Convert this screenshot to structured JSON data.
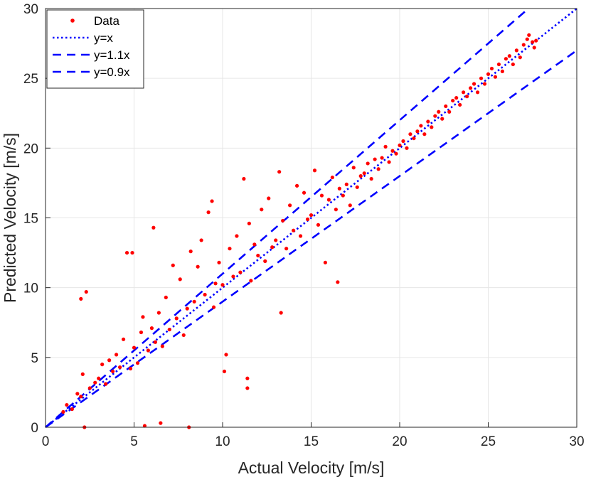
{
  "chart_data": {
    "type": "scatter",
    "title": "",
    "xlabel": "Actual Velocity [m/s]",
    "ylabel": "Predicted Velocity [m/s]",
    "xlim": [
      0,
      30
    ],
    "ylim": [
      0,
      30
    ],
    "xticks": [
      0,
      5,
      10,
      15,
      20,
      25,
      30
    ],
    "yticks": [
      0,
      5,
      10,
      15,
      20,
      25,
      30
    ],
    "xtick_labels": [
      "0",
      "5",
      "10",
      "15",
      "20",
      "25",
      "30"
    ],
    "ytick_labels": [
      "0",
      "5",
      "10",
      "15",
      "20",
      "25",
      "30"
    ],
    "grid": true,
    "legend_position": "top-left",
    "colors": {
      "data": "#ff0000",
      "lines": "#0000ff"
    },
    "legend": [
      {
        "label": "Data",
        "style": "marker"
      },
      {
        "label": "y=x",
        "style": "dotted"
      },
      {
        "label": "y=1.1x",
        "style": "dashed"
      },
      {
        "label": "y=0.9x",
        "style": "dashed"
      }
    ],
    "reference_lines": [
      {
        "name": "y=x",
        "slope": 1.0,
        "style": "dotted"
      },
      {
        "name": "y=1.1x",
        "slope": 1.1,
        "style": "dashed"
      },
      {
        "name": "y=0.9x",
        "slope": 0.9,
        "style": "dashed"
      }
    ],
    "series": [
      {
        "name": "Data",
        "points": [
          [
            1.0,
            1.1
          ],
          [
            1.2,
            1.6
          ],
          [
            1.5,
            1.3
          ],
          [
            1.8,
            2.4
          ],
          [
            2.0,
            2.2
          ],
          [
            2.1,
            3.8
          ],
          [
            2.3,
            9.7
          ],
          [
            2.0,
            9.2
          ],
          [
            2.2,
            0.0
          ],
          [
            2.5,
            2.8
          ],
          [
            2.8,
            3.2
          ],
          [
            3.0,
            3.5
          ],
          [
            3.2,
            4.5
          ],
          [
            3.4,
            3.1
          ],
          [
            3.6,
            4.8
          ],
          [
            3.8,
            4.0
          ],
          [
            4.0,
            5.2
          ],
          [
            4.2,
            4.3
          ],
          [
            4.4,
            6.3
          ],
          [
            4.6,
            12.5
          ],
          [
            4.9,
            12.5
          ],
          [
            4.8,
            4.2
          ],
          [
            5.0,
            5.7
          ],
          [
            5.2,
            4.6
          ],
          [
            5.4,
            6.8
          ],
          [
            5.5,
            7.9
          ],
          [
            5.6,
            0.1
          ],
          [
            5.8,
            5.5
          ],
          [
            6.0,
            7.1
          ],
          [
            6.1,
            14.3
          ],
          [
            6.2,
            6.1
          ],
          [
            6.4,
            8.2
          ],
          [
            6.5,
            0.3
          ],
          [
            6.6,
            5.8
          ],
          [
            6.8,
            9.3
          ],
          [
            7.0,
            7.0
          ],
          [
            7.2,
            11.6
          ],
          [
            7.4,
            7.8
          ],
          [
            7.6,
            10.6
          ],
          [
            7.8,
            6.6
          ],
          [
            8.0,
            8.5
          ],
          [
            8.1,
            0.0
          ],
          [
            8.2,
            12.6
          ],
          [
            8.4,
            9.0
          ],
          [
            8.6,
            11.5
          ],
          [
            8.8,
            13.4
          ],
          [
            9.0,
            9.5
          ],
          [
            9.2,
            15.4
          ],
          [
            9.4,
            16.2
          ],
          [
            9.5,
            8.6
          ],
          [
            9.6,
            10.3
          ],
          [
            9.8,
            11.8
          ],
          [
            10.0,
            10.2
          ],
          [
            10.1,
            4.0
          ],
          [
            10.2,
            5.2
          ],
          [
            10.4,
            12.8
          ],
          [
            10.6,
            10.8
          ],
          [
            10.8,
            13.7
          ],
          [
            11.0,
            11.1
          ],
          [
            11.2,
            17.8
          ],
          [
            11.4,
            3.5
          ],
          [
            11.4,
            2.8
          ],
          [
            11.5,
            14.6
          ],
          [
            11.6,
            10.5
          ],
          [
            11.8,
            13.1
          ],
          [
            12.0,
            12.3
          ],
          [
            12.2,
            15.6
          ],
          [
            12.4,
            11.9
          ],
          [
            12.6,
            16.4
          ],
          [
            12.8,
            12.9
          ],
          [
            13.0,
            13.4
          ],
          [
            13.2,
            18.3
          ],
          [
            13.3,
            8.2
          ],
          [
            13.4,
            14.8
          ],
          [
            13.6,
            12.8
          ],
          [
            13.8,
            15.9
          ],
          [
            14.0,
            14.1
          ],
          [
            14.2,
            17.3
          ],
          [
            14.4,
            13.7
          ],
          [
            14.6,
            16.8
          ],
          [
            14.8,
            14.9
          ],
          [
            15.0,
            15.2
          ],
          [
            15.2,
            18.4
          ],
          [
            15.4,
            14.5
          ],
          [
            15.6,
            16.6
          ],
          [
            15.8,
            11.8
          ],
          [
            16.0,
            16.3
          ],
          [
            16.2,
            17.9
          ],
          [
            16.4,
            15.6
          ],
          [
            16.5,
            10.4
          ],
          [
            16.6,
            17.1
          ],
          [
            16.8,
            16.6
          ],
          [
            17.0,
            17.4
          ],
          [
            17.2,
            15.9
          ],
          [
            17.4,
            18.6
          ],
          [
            17.6,
            17.2
          ],
          [
            17.8,
            18.0
          ],
          [
            18.0,
            18.2
          ],
          [
            18.2,
            18.9
          ],
          [
            18.4,
            17.8
          ],
          [
            18.6,
            19.2
          ],
          [
            18.8,
            18.5
          ],
          [
            19.0,
            19.3
          ],
          [
            19.2,
            20.1
          ],
          [
            19.4,
            19.0
          ],
          [
            19.6,
            19.8
          ],
          [
            19.8,
            19.6
          ],
          [
            20.0,
            20.2
          ],
          [
            20.2,
            20.5
          ],
          [
            20.4,
            20.0
          ],
          [
            20.6,
            21.0
          ],
          [
            20.8,
            20.7
          ],
          [
            21.0,
            21.2
          ],
          [
            21.2,
            21.6
          ],
          [
            21.4,
            21.0
          ],
          [
            21.6,
            21.9
          ],
          [
            21.8,
            21.5
          ],
          [
            22.0,
            22.3
          ],
          [
            22.2,
            22.6
          ],
          [
            22.4,
            22.1
          ],
          [
            22.6,
            23.0
          ],
          [
            22.8,
            22.6
          ],
          [
            23.0,
            23.4
          ],
          [
            23.2,
            23.6
          ],
          [
            23.4,
            23.1
          ],
          [
            23.6,
            24.0
          ],
          [
            23.8,
            23.7
          ],
          [
            24.0,
            24.3
          ],
          [
            24.2,
            24.6
          ],
          [
            24.4,
            24.0
          ],
          [
            24.6,
            25.0
          ],
          [
            24.8,
            24.6
          ],
          [
            25.0,
            25.3
          ],
          [
            25.2,
            25.7
          ],
          [
            25.4,
            25.1
          ],
          [
            25.6,
            26.0
          ],
          [
            25.8,
            25.5
          ],
          [
            26.0,
            26.4
          ],
          [
            26.2,
            26.6
          ],
          [
            26.4,
            26.0
          ],
          [
            26.6,
            27.0
          ],
          [
            26.8,
            26.5
          ],
          [
            27.0,
            27.4
          ],
          [
            27.2,
            27.8
          ],
          [
            27.3,
            28.1
          ],
          [
            27.5,
            27.6
          ],
          [
            27.6,
            27.2
          ],
          [
            27.7,
            27.7
          ]
        ]
      }
    ]
  }
}
